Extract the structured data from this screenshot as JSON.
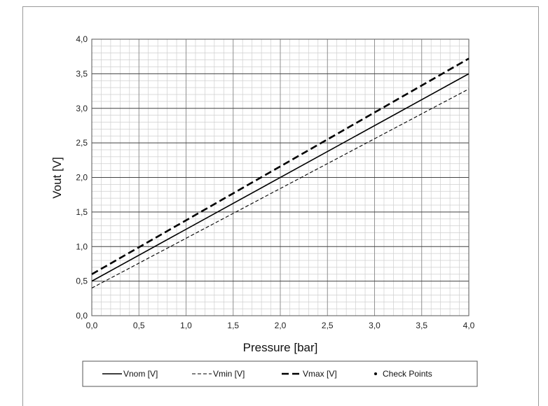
{
  "chart_data": {
    "type": "line",
    "xlabel": "Pressure [bar]",
    "ylabel": "Vout [V]",
    "xlim": [
      0,
      4
    ],
    "ylim": [
      0,
      4
    ],
    "x_ticks": [
      "0,0",
      "0,5",
      "1,0",
      "1,5",
      "2,0",
      "2,5",
      "3,0",
      "3,5",
      "4,0"
    ],
    "y_ticks": [
      "0,0",
      "0,5",
      "1,0",
      "1,5",
      "2,0",
      "2,5",
      "3,0",
      "3,5",
      "4,0"
    ],
    "grid": "major and minor",
    "legend_position": "bottom",
    "series": [
      {
        "name": "Vnom [V]",
        "style": "solid",
        "color": "#000000",
        "x": [
          0,
          4
        ],
        "y": [
          0.5,
          3.5
        ]
      },
      {
        "name": "Vmin [V]",
        "style": "dashed-thin",
        "color": "#000000",
        "x": [
          0,
          4
        ],
        "y": [
          0.4,
          3.28
        ]
      },
      {
        "name": "Vmax [V]",
        "style": "dashed-bold",
        "color": "#000000",
        "x": [
          0,
          4
        ],
        "y": [
          0.6,
          3.72
        ]
      },
      {
        "name": "Check Points",
        "style": "marker",
        "color": "#000000",
        "x": [],
        "y": []
      }
    ]
  }
}
